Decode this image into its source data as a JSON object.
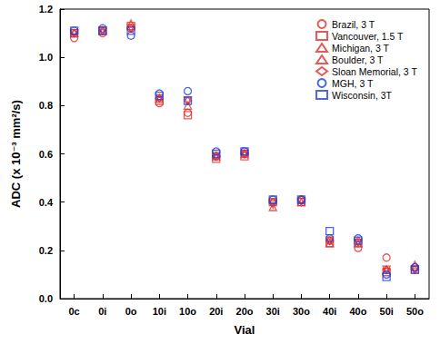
{
  "chart_data": {
    "type": "scatter",
    "x_label": "Vial",
    "y_label": "ADC (x 10⁻³ mm²/s)",
    "categories": [
      "0c",
      "0i",
      "0o",
      "10i",
      "10o",
      "20i",
      "20o",
      "30i",
      "30o",
      "40i",
      "40o",
      "50i",
      "50o"
    ],
    "ylim": [
      0,
      1.2
    ],
    "yticks": [
      {
        "value": 0,
        "label": "0.0"
      },
      0.2,
      0.4,
      0.6,
      0.8,
      {
        "value": 1,
        "label": "1.0"
      },
      1.2
    ],
    "grid": false,
    "legend": "upper right",
    "series": [
      {
        "name": "Brazil, 3 T",
        "color": "#e03030",
        "marker": "circle",
        "values": [
          1.08,
          1.1,
          1.12,
          0.81,
          0.77,
          0.59,
          0.6,
          0.4,
          0.41,
          0.24,
          0.21,
          0.17,
          0.13
        ]
      },
      {
        "name": "Vancouver, 1.5 T",
        "color": "#e03030",
        "marker": "square",
        "values": [
          1.1,
          1.11,
          1.13,
          0.82,
          0.76,
          0.58,
          0.59,
          0.4,
          0.4,
          0.23,
          0.23,
          0.11,
          0.12
        ]
      },
      {
        "name": "Michigan, 3 T",
        "color": "#e03030",
        "marker": "triangle",
        "values": [
          1.1,
          1.11,
          1.14,
          0.83,
          0.8,
          0.59,
          0.6,
          0.38,
          0.4,
          0.23,
          0.23,
          0.12,
          0.14
        ]
      },
      {
        "name": "Boulder, 3 T",
        "color": "#e03030",
        "marker": "triangle_down",
        "values": [
          1.1,
          1.11,
          1.12,
          0.83,
          0.82,
          0.59,
          0.6,
          0.39,
          0.4,
          0.24,
          0.23,
          0.12,
          0.12
        ]
      },
      {
        "name": "Sloan Memorial, 3 T",
        "color": "#e03030",
        "marker": "diamond",
        "values": [
          1.1,
          1.11,
          1.12,
          0.83,
          0.82,
          0.59,
          0.6,
          0.4,
          0.41,
          0.24,
          0.24,
          0.12,
          0.12
        ]
      },
      {
        "name": "MGH, 3 T",
        "color": "#2040e0",
        "marker": "circle",
        "values": [
          1.11,
          1.12,
          1.09,
          0.85,
          0.86,
          0.61,
          0.61,
          0.41,
          0.41,
          0.25,
          0.25,
          0.1,
          0.13
        ]
      },
      {
        "name": "Wisconsin, 3T",
        "color": "#2040e0",
        "marker": "square",
        "values": [
          1.11,
          1.11,
          1.11,
          0.84,
          0.82,
          0.6,
          0.61,
          0.41,
          0.41,
          0.28,
          0.24,
          0.09,
          0.12
        ]
      }
    ]
  }
}
